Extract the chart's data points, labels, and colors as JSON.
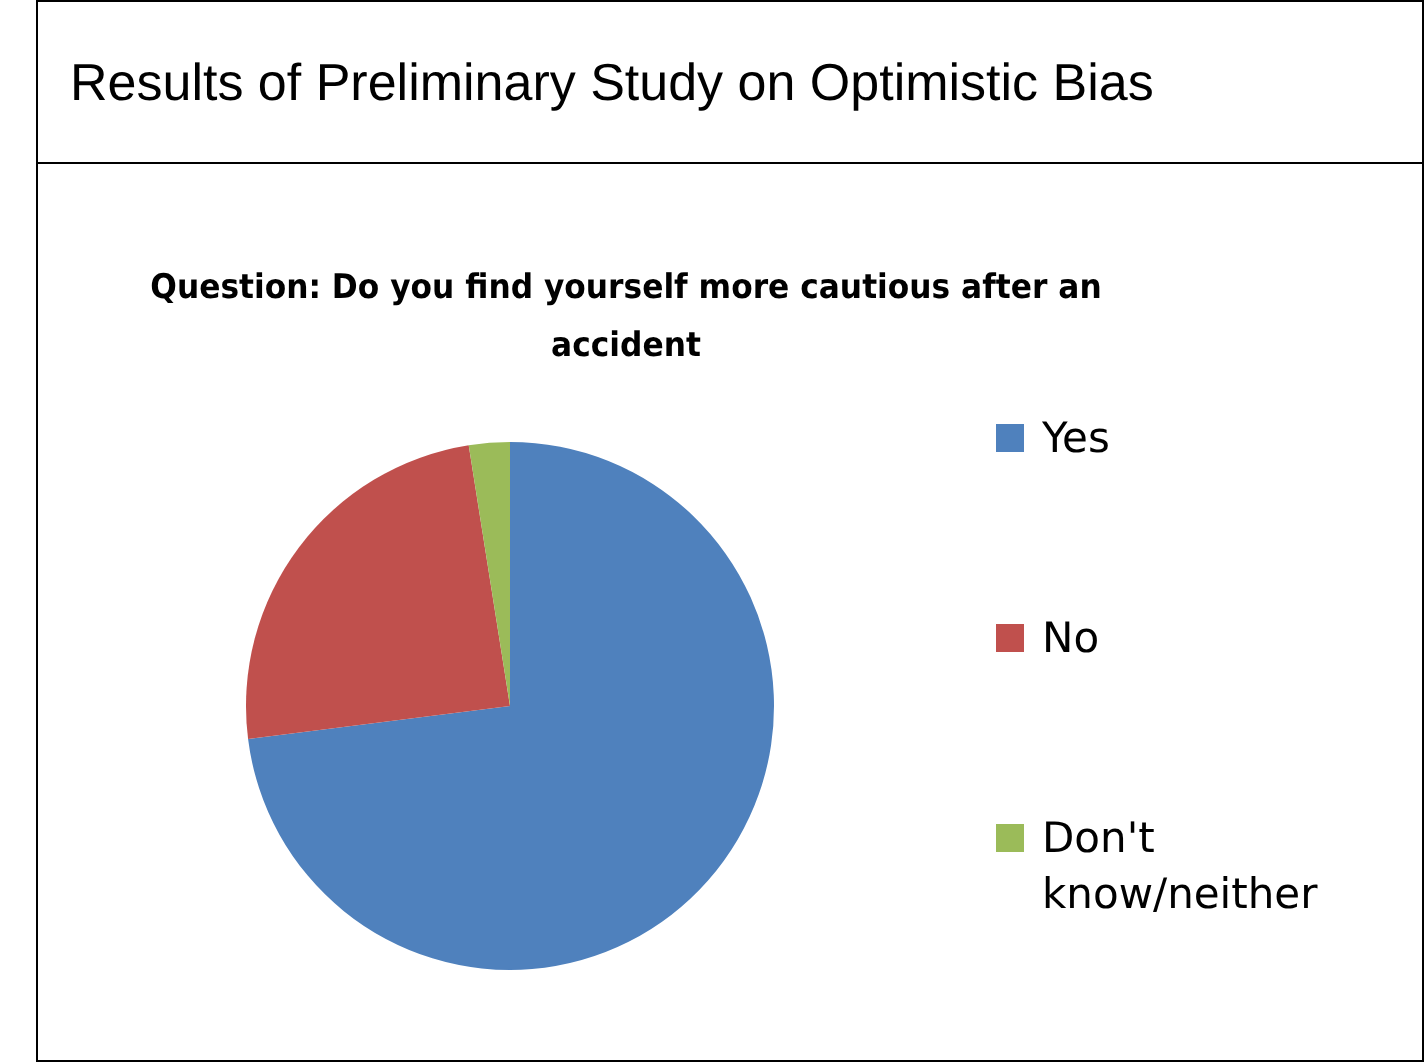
{
  "chart_data": {
    "type": "pie",
    "title": "Results of Preliminary Study on Optimistic Bias",
    "subtitle": "Question: Do you find yourself more cautious after an accident",
    "categories": [
      "Yes",
      "No",
      "Don't know/neither"
    ],
    "values": [
      73,
      24.5,
      2.5
    ],
    "colors": [
      "#4f81bd",
      "#c0504d",
      "#9bbb59"
    ],
    "legend": "right"
  }
}
